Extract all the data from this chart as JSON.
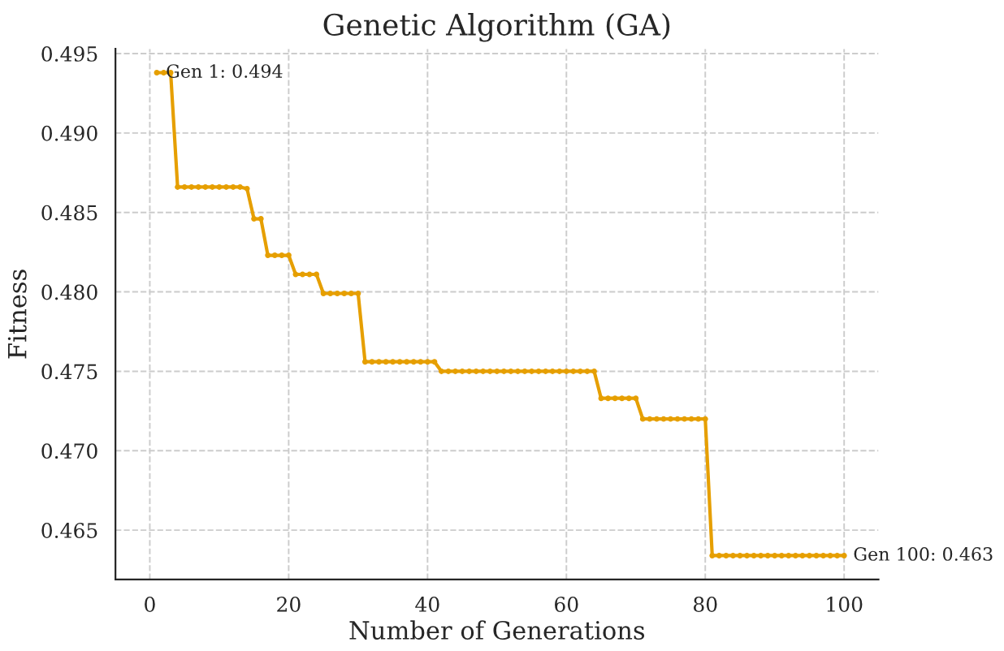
{
  "chart_data": {
    "type": "line",
    "title": "Genetic Algorithm (GA)",
    "xlabel": "Number of Generations",
    "ylabel": "Fitness",
    "x": [
      1,
      2,
      3,
      4,
      5,
      6,
      7,
      8,
      9,
      10,
      11,
      12,
      13,
      14,
      15,
      16,
      17,
      18,
      19,
      20,
      21,
      22,
      23,
      24,
      25,
      26,
      27,
      28,
      29,
      30,
      31,
      32,
      33,
      34,
      35,
      36,
      37,
      38,
      39,
      40,
      41,
      42,
      43,
      44,
      45,
      46,
      47,
      48,
      49,
      50,
      51,
      52,
      53,
      54,
      55,
      56,
      57,
      58,
      59,
      60,
      61,
      62,
      63,
      64,
      65,
      66,
      67,
      68,
      69,
      70,
      71,
      72,
      73,
      74,
      75,
      76,
      77,
      78,
      79,
      80,
      81,
      82,
      83,
      84,
      85,
      86,
      87,
      88,
      89,
      90,
      91,
      92,
      93,
      94,
      95,
      96,
      97,
      98,
      99,
      100
    ],
    "series": [
      {
        "color": "#e69f00",
        "values": [
          0.4938,
          0.4938,
          0.4938,
          0.4866,
          0.4866,
          0.4866,
          0.4866,
          0.4866,
          0.4866,
          0.4866,
          0.4866,
          0.4866,
          0.4866,
          0.4865,
          0.4846,
          0.4846,
          0.4823,
          0.4823,
          0.4823,
          0.4823,
          0.4811,
          0.4811,
          0.4811,
          0.4811,
          0.4799,
          0.4799,
          0.4799,
          0.4799,
          0.4799,
          0.4799,
          0.4756,
          0.4756,
          0.4756,
          0.4756,
          0.4756,
          0.4756,
          0.4756,
          0.4756,
          0.4756,
          0.4756,
          0.4756,
          0.475,
          0.475,
          0.475,
          0.475,
          0.475,
          0.475,
          0.475,
          0.475,
          0.475,
          0.475,
          0.475,
          0.475,
          0.475,
          0.475,
          0.475,
          0.475,
          0.475,
          0.475,
          0.475,
          0.475,
          0.475,
          0.475,
          0.475,
          0.4733,
          0.4733,
          0.4733,
          0.4733,
          0.4733,
          0.4733,
          0.472,
          0.472,
          0.472,
          0.472,
          0.472,
          0.472,
          0.472,
          0.472,
          0.472,
          0.472,
          0.4634,
          0.4634,
          0.4634,
          0.4634,
          0.4634,
          0.4634,
          0.4634,
          0.4634,
          0.4634,
          0.4634,
          0.4634,
          0.4634,
          0.4634,
          0.4634,
          0.4634,
          0.4634,
          0.4634,
          0.4634,
          0.4634,
          0.4634
        ]
      }
    ],
    "annotations": [
      {
        "text": "Gen 1: 0.494",
        "x": 1,
        "y": 0.4938
      },
      {
        "text": "Gen 100: 0.463",
        "x": 100,
        "y": 0.4634
      }
    ],
    "xlim": [
      -4.95,
      104.95
    ],
    "ylim": [
      0.4619,
      0.4953
    ],
    "xticks": [
      0,
      20,
      40,
      60,
      80,
      100
    ],
    "yticks": [
      0.465,
      {
        "value": 0.47,
        "label": "0.470"
      },
      0.475,
      {
        "value": 0.48,
        "label": "0.480"
      },
      0.485,
      {
        "value": 0.49,
        "label": "0.490"
      },
      0.495
    ],
    "grid": true,
    "marker": "circle",
    "line_style": "solid"
  }
}
